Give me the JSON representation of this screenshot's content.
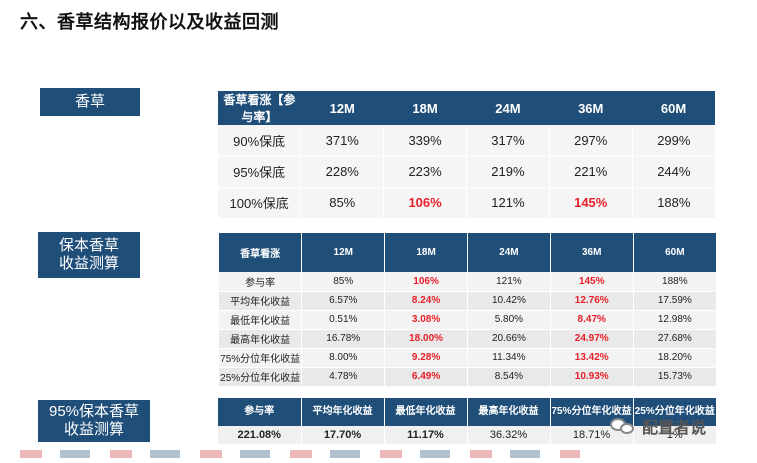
{
  "title": "六、香草结构报价以及收益回测",
  "section1": {
    "label": "香草",
    "headers": [
      "香草看涨【参与率】",
      "12M",
      "18M",
      "24M",
      "36M",
      "60M"
    ],
    "rows": [
      [
        "90%保底",
        "371%",
        "339%",
        "317%",
        "297%",
        "299%"
      ],
      [
        "95%保底",
        "228%",
        "223%",
        "219%",
        "221%",
        "244%"
      ],
      [
        "100%保底",
        "85%",
        "106%",
        "121%",
        "145%",
        "188%"
      ]
    ],
    "highlighted": [
      [
        2,
        2
      ],
      [
        2,
        4
      ]
    ],
    "highlight_color": "#e8202a",
    "header_color": "#1f4e79"
  },
  "section2": {
    "label_line1": "保本香草",
    "label_line2": "收益测算",
    "headers": [
      "香草看涨",
      "12M",
      "18M",
      "24M",
      "36M",
      "60M"
    ],
    "rows": [
      [
        "参与率",
        "85%",
        "106%",
        "121%",
        "145%",
        "188%"
      ],
      [
        "平均年化收益",
        "6.57%",
        "8.24%",
        "10.42%",
        "12.76%",
        "17.59%"
      ],
      [
        "最低年化收益",
        "0.51%",
        "3.08%",
        "5.80%",
        "8.47%",
        "12.98%"
      ],
      [
        "最高年化收益",
        "16.78%",
        "18.00%",
        "20.66%",
        "24.97%",
        "27.68%"
      ],
      [
        "75%分位年化收益",
        "8.00%",
        "9.28%",
        "11.34%",
        "13.42%",
        "18.20%"
      ],
      [
        "25%分位年化收益",
        "4.78%",
        "6.49%",
        "8.54%",
        "10.93%",
        "15.73%"
      ]
    ],
    "highlighted_columns": [
      2,
      4
    ]
  },
  "section3": {
    "label_line1": "95%保本香草",
    "label_line2": "收益测算",
    "headers": [
      "参与率",
      "平均年化收益",
      "最低年化收益",
      "最高年化收益",
      "75%分位年化收益",
      "25%分位年化收益"
    ],
    "row": [
      "221.08%",
      "17.70%",
      "11.17%",
      "36.32%",
      "18.71%",
      "1%"
    ],
    "bold_columns": [
      0,
      1,
      2
    ]
  },
  "watermark": {
    "icon": "wechat-icon",
    "text": "配置者说"
  }
}
